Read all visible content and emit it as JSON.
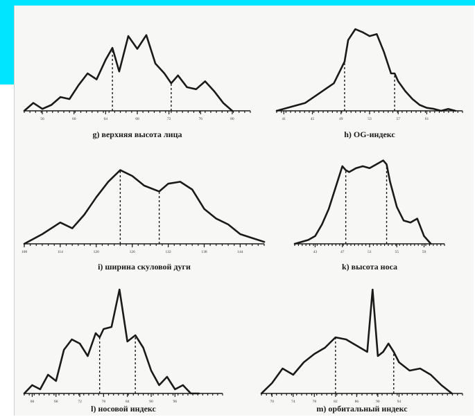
{
  "colors": {
    "frame_accent": "#00e5ff",
    "line": "#1a1a1a",
    "background": "#f7f7f5"
  },
  "chart_data": [
    {
      "id": "g",
      "type": "line",
      "title": "g) верхняя высота лица",
      "xlim": [
        36,
        86
      ],
      "ylim": [
        0,
        100
      ],
      "ticks": [
        "56",
        "60",
        "64",
        "68",
        "72",
        "76",
        "80"
      ],
      "tick_values": [
        40,
        47,
        54,
        61,
        68,
        75,
        82
      ],
      "dashed_x": [
        55.5,
        68.5
      ],
      "x": [
        36,
        38,
        40,
        42,
        44,
        46,
        48,
        50,
        52,
        54,
        55.5,
        57,
        59,
        61,
        63,
        65,
        67,
        68.5,
        70,
        72,
        74,
        76,
        78,
        80,
        82
      ],
      "y": [
        0,
        8,
        2,
        6,
        14,
        12,
        26,
        38,
        32,
        52,
        64,
        40,
        76,
        63,
        77,
        48,
        38,
        28,
        36,
        24,
        22,
        30,
        20,
        8,
        0
      ]
    },
    {
      "id": "h",
      "type": "line",
      "title": "h) OG-индекс",
      "xlim": [
        42,
        68
      ],
      "ylim": [
        0,
        100
      ],
      "ticks": [
        "41",
        "45",
        "49",
        "53",
        "57",
        "61"
      ],
      "tick_values": [
        43,
        47,
        51,
        55,
        59,
        63
      ],
      "dashed_x": [
        51.5,
        58.5
      ],
      "x": [
        42,
        44,
        46,
        48,
        50,
        51.5,
        52,
        53,
        54,
        55,
        56,
        57,
        58,
        58.5,
        59,
        60,
        61,
        62,
        63,
        64,
        65,
        66,
        67
      ],
      "y": [
        0,
        4,
        8,
        18,
        28,
        50,
        72,
        83,
        80,
        76,
        78,
        60,
        38,
        38,
        30,
        20,
        12,
        6,
        3,
        2,
        0,
        2,
        0
      ]
    },
    {
      "id": "i",
      "type": "line",
      "title": "i) ширина скуловой дуги",
      "xlim": [
        108,
        148
      ],
      "ylim": [
        0,
        100
      ],
      "ticks": [
        "108",
        "114",
        "120",
        "126",
        "132",
        "138",
        "144"
      ],
      "tick_values": [
        108,
        114,
        120,
        126,
        132,
        138,
        144
      ],
      "dashed_x": [
        124,
        130.5
      ],
      "x": [
        108,
        111,
        114,
        116,
        118,
        120,
        122,
        124,
        126,
        128,
        130.5,
        132,
        134,
        136,
        138,
        140,
        142,
        144,
        146,
        148
      ],
      "y": [
        0,
        10,
        22,
        16,
        30,
        48,
        64,
        76,
        70,
        60,
        54,
        62,
        64,
        56,
        36,
        26,
        20,
        10,
        6,
        2
      ],
      "x_tick_labels_shown": [
        "108",
        "114",
        "120",
        "126",
        "132",
        "138",
        "144"
      ]
    },
    {
      "id": "k",
      "type": "line",
      "title": "k) высота носа",
      "xlim": [
        40,
        62
      ],
      "ylim": [
        0,
        100
      ],
      "ticks": [
        "43",
        "47",
        "51",
        "55",
        "59"
      ],
      "tick_values": [
        43,
        47,
        51,
        55,
        59
      ],
      "dashed_x": [
        47.5,
        53.5
      ],
      "x": [
        40,
        42,
        43,
        44,
        45,
        46,
        47,
        47.5,
        48,
        49,
        50,
        51,
        52,
        53,
        53.5,
        54,
        55,
        56,
        57,
        58,
        59,
        60
      ],
      "y": [
        0,
        4,
        8,
        20,
        36,
        58,
        80,
        76,
        74,
        78,
        80,
        78,
        82,
        86,
        82,
        64,
        38,
        24,
        22,
        26,
        8,
        0
      ]
    },
    {
      "id": "l",
      "type": "line",
      "title": "l) носовой индекс",
      "xlim": [
        58,
        108
      ],
      "ylim": [
        0,
        100
      ],
      "ticks": [
        "60",
        "66",
        "72",
        "78",
        "84",
        "90",
        "96"
      ],
      "tick_values": [
        60,
        66,
        72,
        78,
        84,
        90,
        96
      ],
      "dashed_x": [
        77,
        86
      ],
      "x": [
        58,
        60,
        62,
        64,
        66,
        68,
        70,
        72,
        74,
        76,
        77,
        78,
        80,
        82,
        84,
        86,
        88,
        90,
        92,
        94,
        96,
        98,
        100,
        102
      ],
      "y": [
        0,
        8,
        4,
        18,
        12,
        42,
        52,
        48,
        36,
        58,
        54,
        62,
        64,
        100,
        50,
        56,
        44,
        22,
        8,
        16,
        4,
        8,
        0,
        0
      ]
    },
    {
      "id": "m",
      "type": "line",
      "title": "m) орбитальный индекс",
      "xlim": [
        68,
        106
      ],
      "ylim": [
        0,
        100
      ],
      "ticks": [
        "70",
        "74",
        "78",
        "82",
        "86",
        "90",
        "94"
      ],
      "tick_values": [
        70,
        74,
        78,
        82,
        86,
        90,
        94
      ],
      "dashed_x": [
        82,
        93
      ],
      "x": [
        68,
        70,
        72,
        74,
        76,
        78,
        80,
        82,
        84,
        86,
        88,
        89,
        90,
        91,
        92,
        93,
        94,
        96,
        98,
        100,
        102,
        104
      ],
      "y": [
        0,
        10,
        24,
        18,
        30,
        38,
        44,
        54,
        52,
        46,
        40,
        100,
        36,
        40,
        48,
        40,
        30,
        22,
        24,
        18,
        8,
        0
      ]
    }
  ]
}
